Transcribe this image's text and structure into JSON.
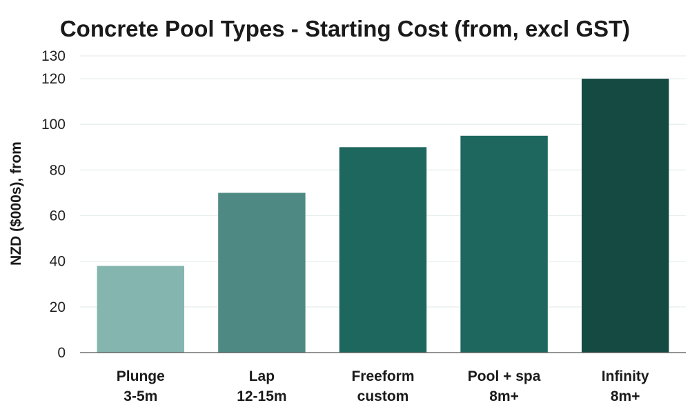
{
  "chart_data": {
    "type": "bar",
    "title": "Concrete Pool Types - Starting Cost (from, excl GST)",
    "ylabel": "NZD ($000s), from",
    "xlabel": "",
    "categories": [
      [
        "Plunge",
        "3-5m"
      ],
      [
        "Lap",
        "12-15m"
      ],
      [
        "Freeform",
        "custom"
      ],
      [
        "Pool + spa",
        "8m+"
      ],
      [
        "Infinity",
        "8m+"
      ]
    ],
    "values": [
      38,
      70,
      90,
      95,
      120
    ],
    "colors": [
      "#84b5af",
      "#4e8a83",
      "#1e675e",
      "#1e675e",
      "#154a43"
    ],
    "ylim": [
      0,
      130
    ],
    "yticks": [
      0,
      20,
      40,
      60,
      80,
      100,
      120,
      130
    ],
    "grid": true,
    "legend": "none"
  }
}
